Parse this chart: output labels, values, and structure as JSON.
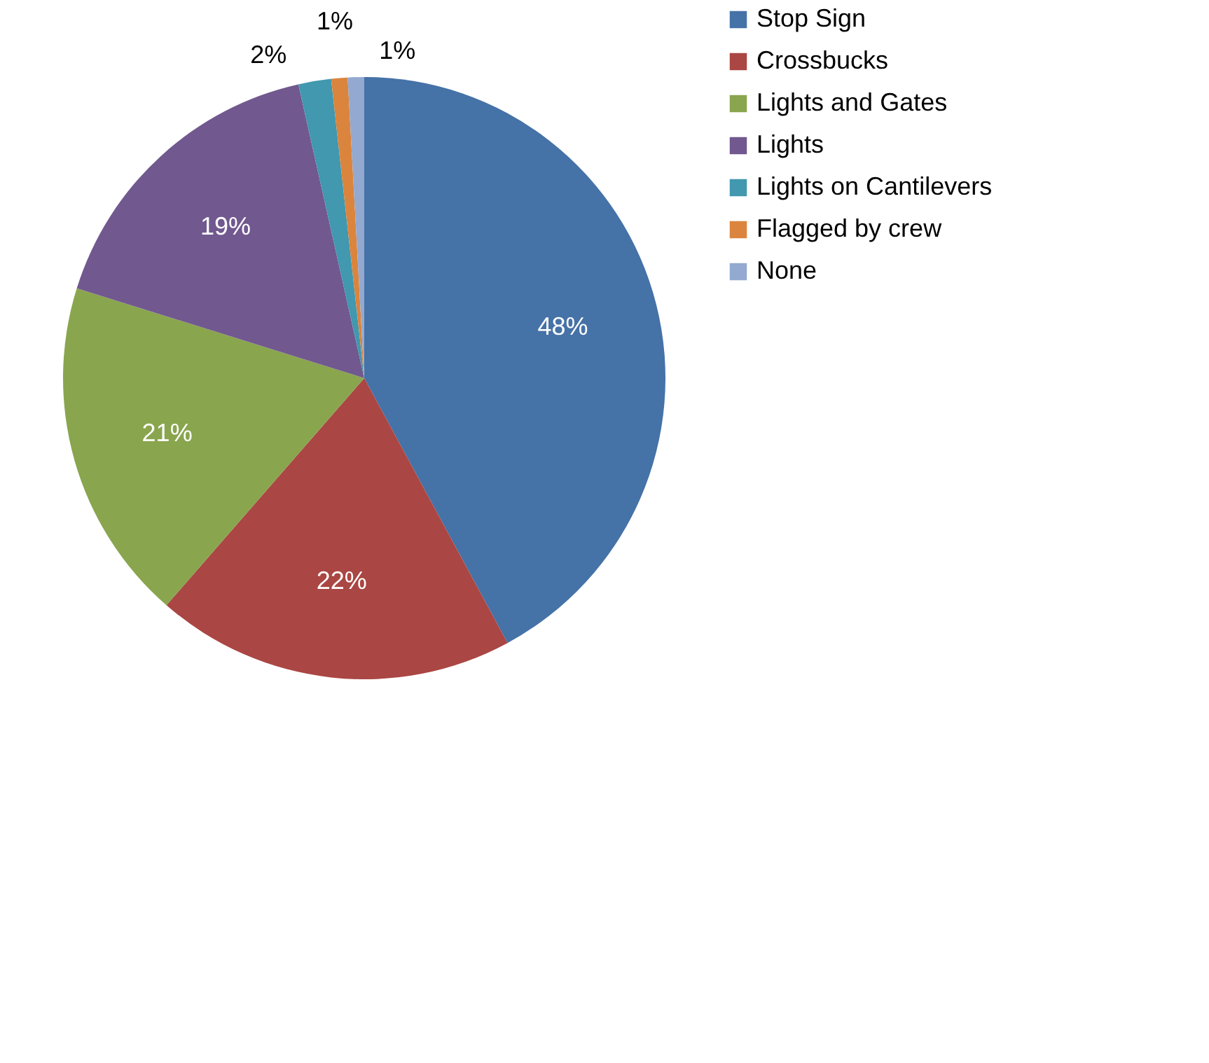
{
  "chart_data": {
    "type": "pie",
    "categories": [
      "Stop Sign",
      "Crossbucks",
      "Lights and Gates",
      "Lights",
      "Lights on Cantilevers",
      "Flagged by crew",
      "None"
    ],
    "values": [
      48,
      22,
      21,
      19,
      2,
      1,
      1
    ],
    "value_labels": [
      "48%",
      "22%",
      "21%",
      "19%",
      "2%",
      "1%",
      "1%"
    ],
    "colors": [
      "#4572a7",
      "#aa4643",
      "#89a54e",
      "#71588f",
      "#4198af",
      "#db843d",
      "#93a9cf"
    ],
    "legend": "right"
  }
}
